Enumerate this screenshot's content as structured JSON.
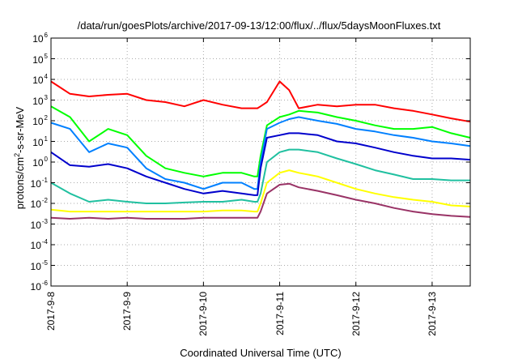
{
  "chart_data": {
    "type": "line",
    "title": "/data/run/goesPlots/archive/2017-09-13/12:00/flux/../flux/5daysMoonFluxes.txt",
    "xlabel": "Coordinated Universal Time (UTC)",
    "ylabel": "protons/cm2-s-sr-MeV",
    "ylabel_parts": {
      "pre": "protons/cm",
      "sup": "2",
      "post": "-s-sr-MeV"
    },
    "yscale": "log",
    "ylim": [
      1e-06,
      1000000.0
    ],
    "xlim": [
      "2017-09-08 00:00",
      "2017-09-13 12:00"
    ],
    "grid": true,
    "x_tick_labels": [
      "2017-9-8",
      "2017-9-9",
      "2017-9-10",
      "2017-9-11",
      "2017-9-12",
      "2017-9-13"
    ],
    "y_tick_labels": [
      {
        "base": "10",
        "exp": "-6"
      },
      {
        "base": "10",
        "exp": "-5"
      },
      {
        "base": "10",
        "exp": "-4"
      },
      {
        "base": "10",
        "exp": "-3"
      },
      {
        "base": "10",
        "exp": "-2"
      },
      {
        "base": "10",
        "exp": "-1"
      },
      {
        "base": "10",
        "exp": "0"
      },
      {
        "base": "10",
        "exp": "1"
      },
      {
        "base": "10",
        "exp": "2"
      },
      {
        "base": "10",
        "exp": "3"
      },
      {
        "base": "10",
        "exp": "4"
      },
      {
        "base": "10",
        "exp": "5"
      },
      {
        "base": "10",
        "exp": "6"
      }
    ],
    "x": [
      "2017-09-08 00:00",
      "2017-09-08 06:00",
      "2017-09-08 12:00",
      "2017-09-08 18:00",
      "2017-09-09 00:00",
      "2017-09-09 06:00",
      "2017-09-09 12:00",
      "2017-09-09 18:00",
      "2017-09-10 00:00",
      "2017-09-10 06:00",
      "2017-09-10 12:00",
      "2017-09-10 16:00",
      "2017-09-10 17:00",
      "2017-09-10 18:00",
      "2017-09-10 20:00",
      "2017-09-11 00:00",
      "2017-09-11 03:00",
      "2017-09-11 06:00",
      "2017-09-11 12:00",
      "2017-09-11 18:00",
      "2017-09-12 00:00",
      "2017-09-12 06:00",
      "2017-09-12 12:00",
      "2017-09-12 18:00",
      "2017-09-13 00:00",
      "2017-09-13 06:00",
      "2017-09-13 12:00"
    ],
    "series": [
      {
        "color": "#ff0000",
        "values": [
          8000,
          2000,
          1500,
          1800,
          2000,
          1000,
          800,
          500,
          1000,
          600,
          400,
          400,
          400,
          500,
          800,
          8000,
          3000,
          400,
          600,
          500,
          600,
          600,
          400,
          300,
          200,
          130,
          90
        ]
      },
      {
        "color": "#00ff00",
        "values": [
          500,
          150,
          10,
          40,
          20,
          2,
          0.5,
          0.3,
          0.2,
          0.3,
          0.3,
          0.2,
          0.2,
          2,
          60,
          150,
          200,
          300,
          250,
          150,
          100,
          60,
          40,
          40,
          50,
          25,
          15
        ]
      },
      {
        "color": "#0080ff",
        "values": [
          80,
          40,
          3,
          8,
          5,
          0.5,
          0.15,
          0.1,
          0.05,
          0.1,
          0.1,
          0.05,
          0.05,
          1,
          40,
          80,
          120,
          150,
          100,
          70,
          40,
          30,
          20,
          15,
          10,
          8,
          6
        ]
      },
      {
        "color": "#0000cc",
        "values": [
          3,
          0.7,
          0.6,
          0.8,
          0.5,
          0.2,
          0.1,
          0.05,
          0.03,
          0.04,
          0.03,
          0.025,
          0.025,
          0.5,
          15,
          20,
          25,
          25,
          20,
          10,
          8,
          5,
          3,
          2,
          1.5,
          1.5,
          1.3
        ]
      },
      {
        "color": "#20c0a0",
        "values": [
          0.1,
          0.03,
          0.012,
          0.015,
          0.012,
          0.01,
          0.01,
          0.011,
          0.012,
          0.012,
          0.015,
          0.012,
          0.012,
          0.03,
          1,
          3,
          4,
          4,
          3,
          1.5,
          0.8,
          0.4,
          0.25,
          0.15,
          0.15,
          0.13,
          0.13
        ]
      },
      {
        "color": "#ffff00",
        "values": [
          0.005,
          0.004,
          0.004,
          0.004,
          0.004,
          0.004,
          0.004,
          0.004,
          0.004,
          0.0045,
          0.0045,
          0.004,
          0.004,
          0.01,
          0.1,
          0.3,
          0.4,
          0.3,
          0.2,
          0.1,
          0.05,
          0.03,
          0.02,
          0.015,
          0.012,
          0.008,
          0.007
        ]
      },
      {
        "color": "#993366",
        "values": [
          0.002,
          0.0018,
          0.002,
          0.0018,
          0.002,
          0.0018,
          0.0018,
          0.0018,
          0.002,
          0.002,
          0.002,
          0.002,
          0.002,
          0.004,
          0.03,
          0.08,
          0.09,
          0.06,
          0.04,
          0.025,
          0.015,
          0.01,
          0.006,
          0.004,
          0.003,
          0.0025,
          0.0022
        ]
      }
    ]
  }
}
